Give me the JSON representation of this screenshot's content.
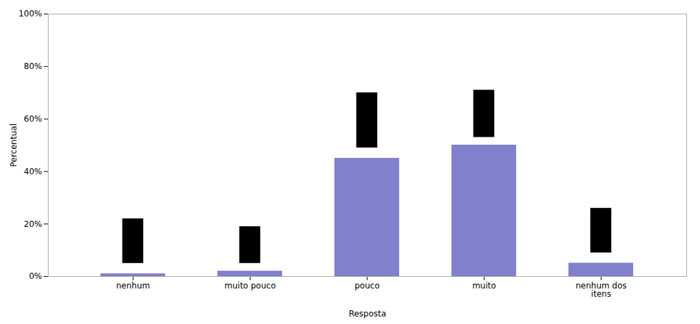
{
  "chart_data": {
    "type": "bar",
    "categories": [
      "nenhum",
      "muito pouco",
      "pouco",
      "muito",
      "nenhum dos\nitens"
    ],
    "values": [
      1.0,
      2.0,
      45.0,
      50.0,
      5.0
    ],
    "color": "#8080cc",
    "error_low": [
      5.0,
      5.0,
      49.0,
      53.0,
      9.0
    ],
    "error_high": [
      22.0,
      19.0,
      70.0,
      71.0,
      26.0
    ],
    "error_color": "#000000",
    "xlabel": "Resposta",
    "ylabel": "Percentual",
    "ylim": [
      0,
      100
    ],
    "yticks": [
      {
        "value": 0,
        "label": "0%"
      },
      {
        "value": 20,
        "label": "20%"
      },
      {
        "value": 40,
        "label": "40%"
      },
      {
        "value": 60,
        "label": "60%"
      },
      {
        "value": 80,
        "label": "80%"
      },
      {
        "value": 100,
        "label": "100%"
      }
    ],
    "grid": false
  }
}
